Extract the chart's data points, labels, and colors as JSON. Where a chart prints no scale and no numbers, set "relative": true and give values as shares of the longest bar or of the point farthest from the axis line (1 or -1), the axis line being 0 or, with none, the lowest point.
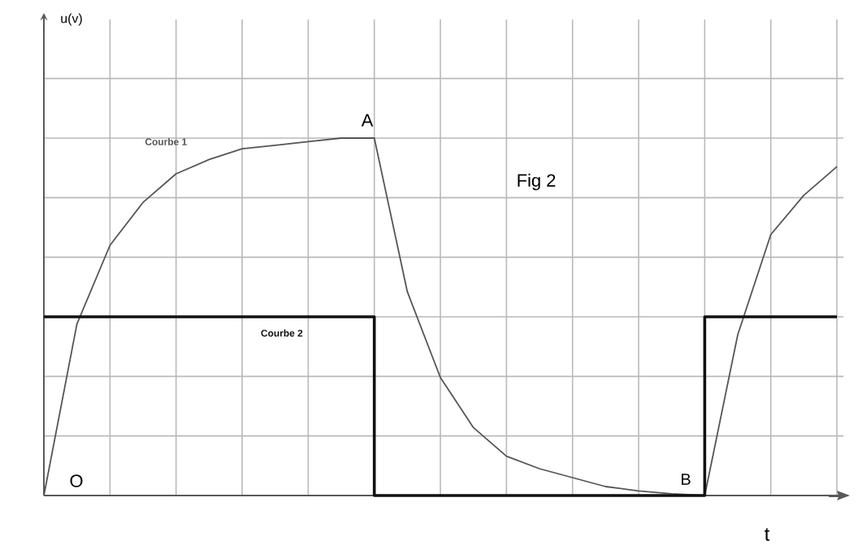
{
  "chart_data": {
    "type": "line",
    "relative": true,
    "xlabel": "t",
    "grid": true,
    "annotations": [
      "Fig 2",
      "A",
      "B",
      "O",
      "u(v)"
    ],
    "categories": [
      null,
      null,
      null,
      null,
      null,
      null,
      null,
      null,
      null,
      null,
      null,
      null,
      null,
      null,
      null,
      null,
      null,
      null,
      null,
      null,
      null,
      null,
      null,
      null,
      null
    ],
    "series": [
      {
        "name": "Courbe 1",
        "color": "#555555",
        "values": [
          0,
          0.48,
          0.7,
          0.82,
          0.9,
          0.94,
          0.97,
          0.98,
          0.99,
          1.0,
          1.0,
          0.57,
          0.33,
          0.19,
          0.11,
          0.075,
          0.05,
          0.025,
          0.013,
          0.005,
          0,
          0.45,
          0.73,
          0.84,
          0.92
        ]
      },
      {
        "name": "Courbe 2",
        "type": "step",
        "color": "#111111",
        "values": [
          0.5,
          0.5,
          0.5,
          0.5,
          0.5,
          0.5,
          0.5,
          0.5,
          0.5,
          0.5,
          0,
          0,
          0,
          0,
          0,
          0,
          0,
          0,
          0,
          0,
          0.5,
          0.5,
          0.5,
          0.5,
          0.5
        ]
      }
    ]
  }
}
